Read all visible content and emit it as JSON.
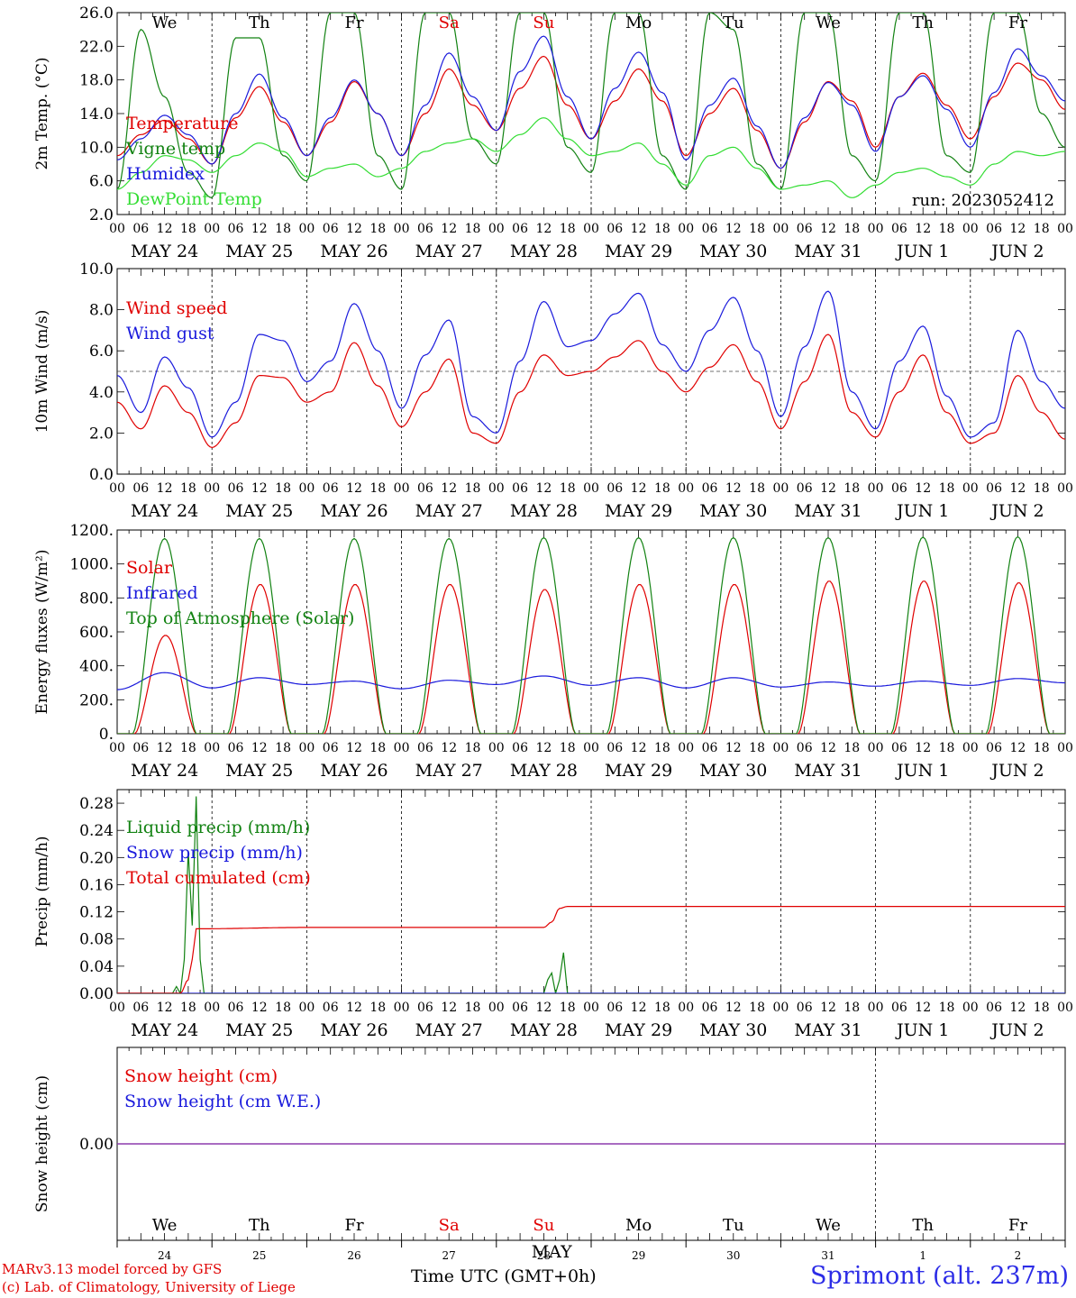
{
  "colors": {
    "red": "#e00000",
    "blue": "#1a1adc",
    "dark_green": "#128212",
    "light_green": "#33dd33",
    "purple": "#8833aa",
    "weekend": "#e00000"
  },
  "days": {
    "dates_top": [
      "MAY 24",
      "MAY 25",
      "MAY 26",
      "MAY 27",
      "MAY 28",
      "MAY 29",
      "MAY 30",
      "MAY 31",
      "JUN  1",
      "JUN  2"
    ],
    "weekdays": [
      "We",
      "Th",
      "Fr",
      "Sa",
      "Su",
      "Mo",
      "Tu",
      "We",
      "Th",
      "Fr"
    ],
    "weekend_flags": [
      false,
      false,
      false,
      true,
      true,
      false,
      false,
      false,
      false,
      false
    ],
    "day_numbers": [
      "24",
      "25",
      "26",
      "27",
      "28",
      "29",
      "30",
      "31",
      "1",
      "2"
    ],
    "hour_ticks": [
      "00",
      "06",
      "12",
      "18"
    ],
    "final_tick": "00"
  },
  "footer": {
    "credit_line1": "MARv3.13 model forced by GFS",
    "credit_line2": "(c) Lab. of Climatology, University of Liege",
    "time_label": "Time UTC (GMT+0h)",
    "overlap_label": "MAY",
    "place": "Sprimont (alt. 237m)"
  },
  "chart_data": [
    {
      "type": "line",
      "panel": "temperature",
      "ylabel": "2m Temp. (°C)",
      "ylim": [
        2.0,
        26.0
      ],
      "yticks": [
        "2.0",
        "6.0",
        "10.0",
        "14.0",
        "18.0",
        "22.0",
        "26.0"
      ],
      "run_label": "run: 2023052412",
      "x_unit": "hours since MAY 24 00 UTC",
      "xlim": [
        0,
        240
      ],
      "series": [
        {
          "name": "Temperature",
          "color": "#e00000",
          "x": [
            0,
            6,
            12,
            18,
            24,
            30,
            36,
            42,
            48,
            54,
            60,
            66,
            72,
            78,
            84,
            90,
            96,
            102,
            108,
            114,
            120,
            126,
            132,
            138,
            144,
            150,
            156,
            162,
            168,
            174,
            180,
            186,
            192,
            198,
            204,
            210,
            216,
            222,
            228,
            234,
            240
          ],
          "values": [
            9.0,
            11.5,
            13.2,
            11.0,
            8.0,
            13.5,
            17.2,
            13.0,
            9.0,
            13.0,
            17.8,
            14.0,
            9.0,
            14.0,
            19.3,
            15.0,
            12.0,
            17.0,
            20.8,
            15.0,
            11.0,
            15.5,
            19.3,
            15.5,
            9.0,
            14.0,
            17.0,
            12.0,
            7.5,
            13.0,
            17.8,
            15.5,
            10.0,
            16.0,
            18.8,
            15.0,
            11.0,
            16.0,
            20.0,
            18.0,
            14.5
          ]
        },
        {
          "name": "Vigne temp",
          "color": "#128212",
          "x": [
            0,
            6,
            12,
            18,
            24,
            30,
            36,
            42,
            48,
            54,
            60,
            66,
            72,
            78,
            84,
            90,
            96,
            102,
            108,
            114,
            120,
            126,
            132,
            138,
            144,
            150,
            156,
            162,
            168,
            174,
            180,
            186,
            192,
            198,
            204,
            210,
            216,
            222,
            228,
            234,
            240
          ],
          "values": [
            5.0,
            24.0,
            16.0,
            7.0,
            4.0,
            23.0,
            23.0,
            9.0,
            6.0,
            26.0,
            26.0,
            9.0,
            5.0,
            26.0,
            26.0,
            11.0,
            8.0,
            26.0,
            26.0,
            10.0,
            7.0,
            26.0,
            26.0,
            9.0,
            5.0,
            26.0,
            24.0,
            8.0,
            5.0,
            26.0,
            26.0,
            9.0,
            6.0,
            26.0,
            26.0,
            9.0,
            7.0,
            26.0,
            26.0,
            14.0,
            10.0
          ]
        },
        {
          "name": "Humidex",
          "color": "#1a1adc",
          "x": [
            0,
            6,
            12,
            18,
            24,
            30,
            36,
            42,
            48,
            54,
            60,
            66,
            72,
            78,
            84,
            90,
            96,
            102,
            108,
            114,
            120,
            126,
            132,
            138,
            144,
            150,
            156,
            162,
            168,
            174,
            180,
            186,
            192,
            198,
            204,
            210,
            216,
            222,
            228,
            234,
            240
          ],
          "values": [
            8.5,
            11.0,
            13.8,
            11.5,
            8.0,
            14.0,
            18.7,
            13.5,
            9.0,
            13.5,
            18.0,
            14.0,
            9.0,
            15.0,
            21.2,
            16.0,
            12.0,
            19.0,
            23.2,
            16.0,
            11.0,
            17.0,
            21.3,
            16.5,
            8.5,
            15.0,
            18.2,
            12.5,
            7.5,
            13.5,
            17.7,
            15.0,
            9.5,
            16.0,
            18.5,
            14.5,
            10.0,
            16.5,
            21.7,
            18.5,
            15.5
          ]
        },
        {
          "name": "DewPoint Temp",
          "color": "#33dd33",
          "x": [
            0,
            6,
            12,
            18,
            24,
            30,
            36,
            42,
            48,
            54,
            60,
            66,
            72,
            78,
            84,
            90,
            96,
            102,
            108,
            114,
            120,
            126,
            132,
            138,
            144,
            150,
            156,
            162,
            168,
            174,
            180,
            186,
            192,
            198,
            204,
            210,
            216,
            222,
            228,
            234,
            240
          ],
          "values": [
            5.0,
            7.0,
            9.0,
            8.5,
            7.0,
            9.0,
            10.5,
            9.5,
            6.5,
            7.5,
            8.0,
            6.5,
            7.5,
            9.5,
            10.5,
            11.0,
            9.5,
            11.5,
            13.5,
            11.0,
            9.0,
            9.5,
            10.5,
            8.0,
            5.5,
            9.0,
            10.0,
            7.5,
            5.0,
            5.5,
            6.0,
            4.0,
            5.5,
            7.0,
            7.5,
            6.5,
            5.5,
            8.0,
            9.5,
            9.0,
            9.5
          ]
        }
      ]
    },
    {
      "type": "line",
      "panel": "wind",
      "ylabel": "10m Wind (m/s)",
      "ylim": [
        0.0,
        10.0
      ],
      "yticks": [
        "0.0",
        "2.0",
        "4.0",
        "6.0",
        "8.0",
        "10.0"
      ],
      "reference_line": 5.0,
      "x_unit": "hours since MAY 24 00 UTC",
      "xlim": [
        0,
        240
      ],
      "series": [
        {
          "name": "Wind speed",
          "color": "#e00000",
          "x": [
            0,
            6,
            12,
            18,
            24,
            30,
            36,
            42,
            48,
            54,
            60,
            66,
            72,
            78,
            84,
            90,
            96,
            102,
            108,
            114,
            120,
            126,
            132,
            138,
            144,
            150,
            156,
            162,
            168,
            174,
            180,
            186,
            192,
            198,
            204,
            210,
            216,
            222,
            228,
            234,
            240
          ],
          "values": [
            3.5,
            2.2,
            4.3,
            3.0,
            1.3,
            2.5,
            4.8,
            4.7,
            3.5,
            4.0,
            6.4,
            4.3,
            2.3,
            4.0,
            5.6,
            2.0,
            1.5,
            4.0,
            5.8,
            4.8,
            5.0,
            5.7,
            6.5,
            5.0,
            4.0,
            5.2,
            6.3,
            4.5,
            2.2,
            4.5,
            6.8,
            3.0,
            1.8,
            4.0,
            5.8,
            3.0,
            1.5,
            2.0,
            4.8,
            3.0,
            1.7
          ]
        },
        {
          "name": "Wind gust",
          "color": "#1a1adc",
          "x": [
            0,
            6,
            12,
            18,
            24,
            30,
            36,
            42,
            48,
            54,
            60,
            66,
            72,
            78,
            84,
            90,
            96,
            102,
            108,
            114,
            120,
            126,
            132,
            138,
            144,
            150,
            156,
            162,
            168,
            174,
            180,
            186,
            192,
            198,
            204,
            210,
            216,
            222,
            228,
            234,
            240
          ],
          "values": [
            4.8,
            3.0,
            5.7,
            4.2,
            1.8,
            3.5,
            6.8,
            6.5,
            4.5,
            5.5,
            8.3,
            6.0,
            3.2,
            5.8,
            7.5,
            2.8,
            2.0,
            5.5,
            8.4,
            6.2,
            6.5,
            7.8,
            8.8,
            6.3,
            5.0,
            7.0,
            8.6,
            6.0,
            2.8,
            6.2,
            8.9,
            4.0,
            2.2,
            5.5,
            7.2,
            3.8,
            1.8,
            2.5,
            7.0,
            4.5,
            3.2
          ]
        }
      ]
    },
    {
      "type": "line",
      "panel": "energy",
      "ylabel": "Energy fluxes (W/m²)",
      "ylim": [
        0,
        1200
      ],
      "yticks": [
        "0.",
        "200.",
        "400.",
        "600.",
        "800.",
        "1000.",
        "1200."
      ],
      "x_unit": "hours since MAY 24 00 UTC",
      "xlim": [
        0,
        240
      ],
      "series": [
        {
          "name": "Solar",
          "color": "#e00000",
          "peaks": [
            580,
            880,
            880,
            880,
            850,
            880,
            880,
            900,
            900,
            890
          ],
          "peak_hour": 12,
          "day_start_hour": 4.5,
          "day_end_hour": 20.0
        },
        {
          "name": "Infrared",
          "color": "#1a1adc",
          "x": [
            0,
            12,
            24,
            36,
            48,
            60,
            72,
            84,
            96,
            108,
            120,
            132,
            144,
            156,
            168,
            180,
            192,
            204,
            216,
            228,
            240
          ],
          "values": [
            260,
            360,
            270,
            330,
            290,
            310,
            265,
            315,
            290,
            340,
            285,
            330,
            270,
            330,
            275,
            305,
            280,
            310,
            285,
            325,
            300
          ]
        },
        {
          "name": "Top of Atmosphere (Solar)",
          "color": "#128212",
          "peaks": [
            1150,
            1150,
            1150,
            1150,
            1155,
            1155,
            1155,
            1155,
            1158,
            1160
          ],
          "peak_hour": 12,
          "day_start_hour": 4.0,
          "day_end_hour": 20.0
        }
      ]
    },
    {
      "type": "line",
      "panel": "precip",
      "ylabel": "Precip (mm/h)",
      "ylim": [
        0.0,
        0.3
      ],
      "yticks": [
        "0.00",
        "0.04",
        "0.08",
        "0.12",
        "0.16",
        "0.20",
        "0.24",
        "0.28"
      ],
      "x_unit": "hours since MAY 24 00 UTC",
      "xlim": [
        0,
        240
      ],
      "series": [
        {
          "name": "Liquid precip (mm/h)",
          "color": "#128212",
          "x": [
            0,
            14,
            15,
            16,
            17,
            18,
            19,
            20,
            21,
            22,
            108,
            109,
            110,
            111,
            112,
            113,
            114,
            240
          ],
          "values": [
            0,
            0,
            0.01,
            0.0,
            0.05,
            0.21,
            0.1,
            0.29,
            0.05,
            0,
            0,
            0.02,
            0.03,
            0.0,
            0.02,
            0.06,
            0.0,
            0
          ]
        },
        {
          "name": "Snow precip (mm/h)",
          "color": "#1a1adc",
          "x": [
            0,
            240
          ],
          "values": [
            0,
            0
          ]
        },
        {
          "name": "Total cumulated (cm)",
          "color": "#e00000",
          "x": [
            0,
            16,
            18,
            19,
            20,
            48,
            72,
            96,
            108,
            110,
            112,
            114,
            144,
            168,
            240
          ],
          "values": [
            0,
            0.0,
            0.02,
            0.05,
            0.095,
            0.097,
            0.097,
            0.097,
            0.097,
            0.105,
            0.125,
            0.128,
            0.128,
            0.128,
            0.128
          ]
        }
      ]
    },
    {
      "type": "line",
      "panel": "snow",
      "ylabel": "Snow height (cm)",
      "yticks": [
        "0.00"
      ],
      "x_unit": "hours since MAY 24 00 UTC",
      "xlim": [
        0,
        240
      ],
      "series": [
        {
          "name": "Snow height (cm)",
          "color": "#e00000",
          "x": [
            0,
            240
          ],
          "values": [
            0,
            0
          ]
        },
        {
          "name": "Snow height (cm W.E.)",
          "color": "#1a1adc",
          "x": [
            0,
            240
          ],
          "values": [
            0,
            0
          ]
        }
      ]
    }
  ]
}
